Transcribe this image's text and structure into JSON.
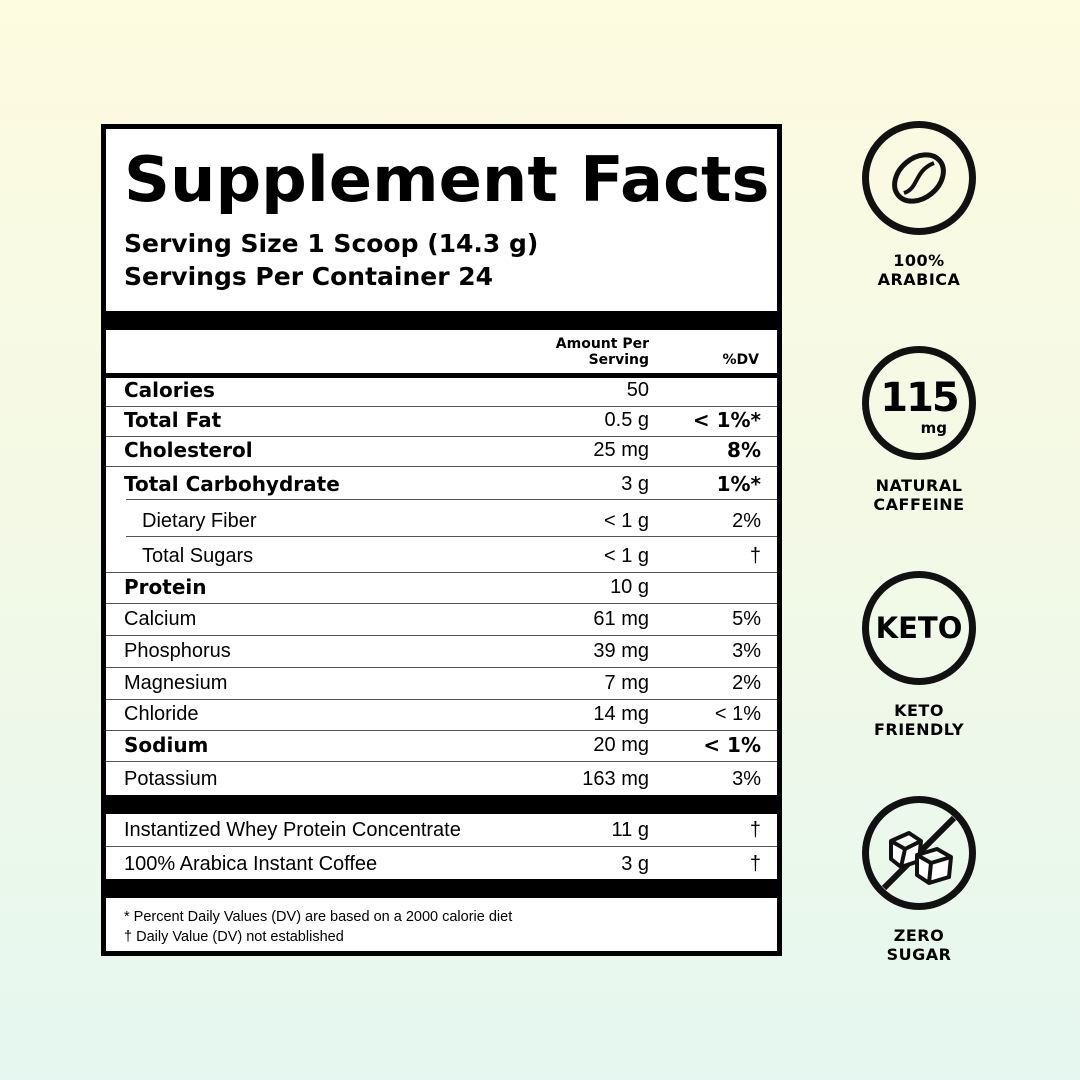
{
  "label": {
    "title": "Supplement Facts",
    "serving_size": "Serving Size 1 Scoop (14.3 g)",
    "servings_per_container": "Servings Per Container 24",
    "header": {
      "amount_line1": "Amount Per",
      "amount_line2": "Serving",
      "dv": "%DV"
    },
    "rows": [
      {
        "name": "Calories",
        "amount": "50",
        "dv": ""
      },
      {
        "name": "Total Fat",
        "amount": "0.5 g",
        "dv": "< 1%*"
      },
      {
        "name": "Cholesterol",
        "amount": "25 mg",
        "dv": "8%"
      },
      {
        "name": "Total Carbohydrate",
        "amount": "3 g",
        "dv": "1%*"
      },
      {
        "name": "Dietary Fiber",
        "amount": "< 1 g",
        "dv": "2%"
      },
      {
        "name": "Total Sugars",
        "amount": "< 1 g",
        "dv": "†"
      },
      {
        "name": "Protein",
        "amount": "10 g",
        "dv": ""
      },
      {
        "name": "Calcium",
        "amount": "61 mg",
        "dv": "5%"
      },
      {
        "name": "Phosphorus",
        "amount": "39 mg",
        "dv": "3%"
      },
      {
        "name": "Magnesium",
        "amount": "7 mg",
        "dv": "2%"
      },
      {
        "name": "Chloride",
        "amount": "14 mg",
        "dv": "< 1%"
      },
      {
        "name": "Sodium",
        "amount": "20 mg",
        "dv": "< 1%"
      },
      {
        "name": "Potassium",
        "amount": "163 mg",
        "dv": "3%"
      }
    ],
    "ingredients": [
      {
        "name": "Instantized Whey Protein Concentrate",
        "amount": "11 g",
        "dv": "†"
      },
      {
        "name": "100% Arabica Instant Coffee",
        "amount": "3 g",
        "dv": "†"
      }
    ],
    "footnotes": [
      "* Percent Daily Values (DV) are based on a 2000 calorie diet",
      "† Daily Value (DV) not established"
    ]
  },
  "badges": [
    {
      "icon": "coffee-bean-icon",
      "line1": "100%",
      "line2": "ARABICA"
    },
    {
      "icon": "caffeine-icon",
      "number": "115",
      "unit": "mg",
      "line1": "NATURAL",
      "line2": "CAFFEINE"
    },
    {
      "icon": "keto-icon",
      "text": "KETO",
      "line1": "KETO",
      "line2": "FRIENDLY"
    },
    {
      "icon": "no-sugar-icon",
      "line1": "ZERO",
      "line2": "SUGAR"
    }
  ]
}
